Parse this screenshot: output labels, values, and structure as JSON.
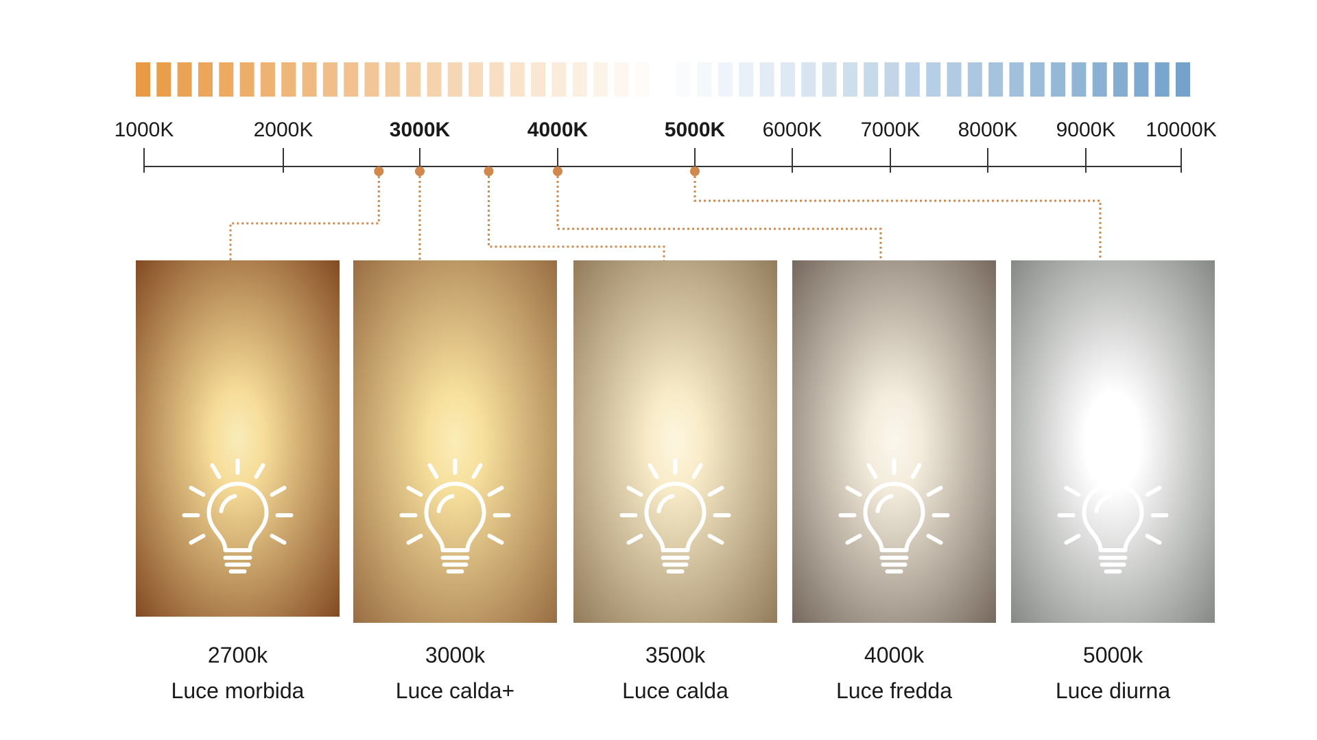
{
  "scale": {
    "ticks": [
      {
        "label": "1000K",
        "value": 1000,
        "bold": false
      },
      {
        "label": "2000K",
        "value": 2000,
        "bold": false
      },
      {
        "label": "3000K",
        "value": 3000,
        "bold": true
      },
      {
        "label": "4000K",
        "value": 4000,
        "bold": true
      },
      {
        "label": "5000K",
        "value": 5000,
        "bold": true
      },
      {
        "label": "6000K",
        "value": 6000,
        "bold": false
      },
      {
        "label": "7000K",
        "value": 7000,
        "bold": false
      },
      {
        "label": "8000K",
        "value": 8000,
        "bold": false
      },
      {
        "label": "9000K",
        "value": 9000,
        "bold": false
      },
      {
        "label": "10000K",
        "value": 10000,
        "bold": false
      }
    ],
    "gradient_colors": {
      "warm": "#e89a45",
      "neutral": "#ffffff",
      "cool": "#74a2cb"
    },
    "connector_color": "#d0884c"
  },
  "samples": [
    {
      "kelvin": 2700,
      "temp_label": "2700k",
      "name": "Luce morbida",
      "edge_color": "#7a3f1a",
      "center_color": "#f6dc98",
      "glow_color": "#f9ecba"
    },
    {
      "kelvin": 3000,
      "temp_label": "3000k",
      "name": "Luce calda+",
      "edge_color": "#91643c",
      "center_color": "#f7e09d",
      "glow_color": "#fbecb8"
    },
    {
      "kelvin": 3500,
      "temp_label": "3500k",
      "name": "Luce calda",
      "edge_color": "#8a7352",
      "center_color": "#f8ebc8",
      "glow_color": "#fdf6e0"
    },
    {
      "kelvin": 4000,
      "temp_label": "4000k",
      "name": "Luce fredda",
      "edge_color": "#6c5f55",
      "center_color": "#f3ecdc",
      "glow_color": "#fbf7ee"
    },
    {
      "kelvin": 5000,
      "temp_label": "5000k",
      "name": "Luce diurna",
      "edge_color": "#7c807b",
      "center_color": "#ffffff",
      "glow_color": "#ffffff"
    }
  ]
}
